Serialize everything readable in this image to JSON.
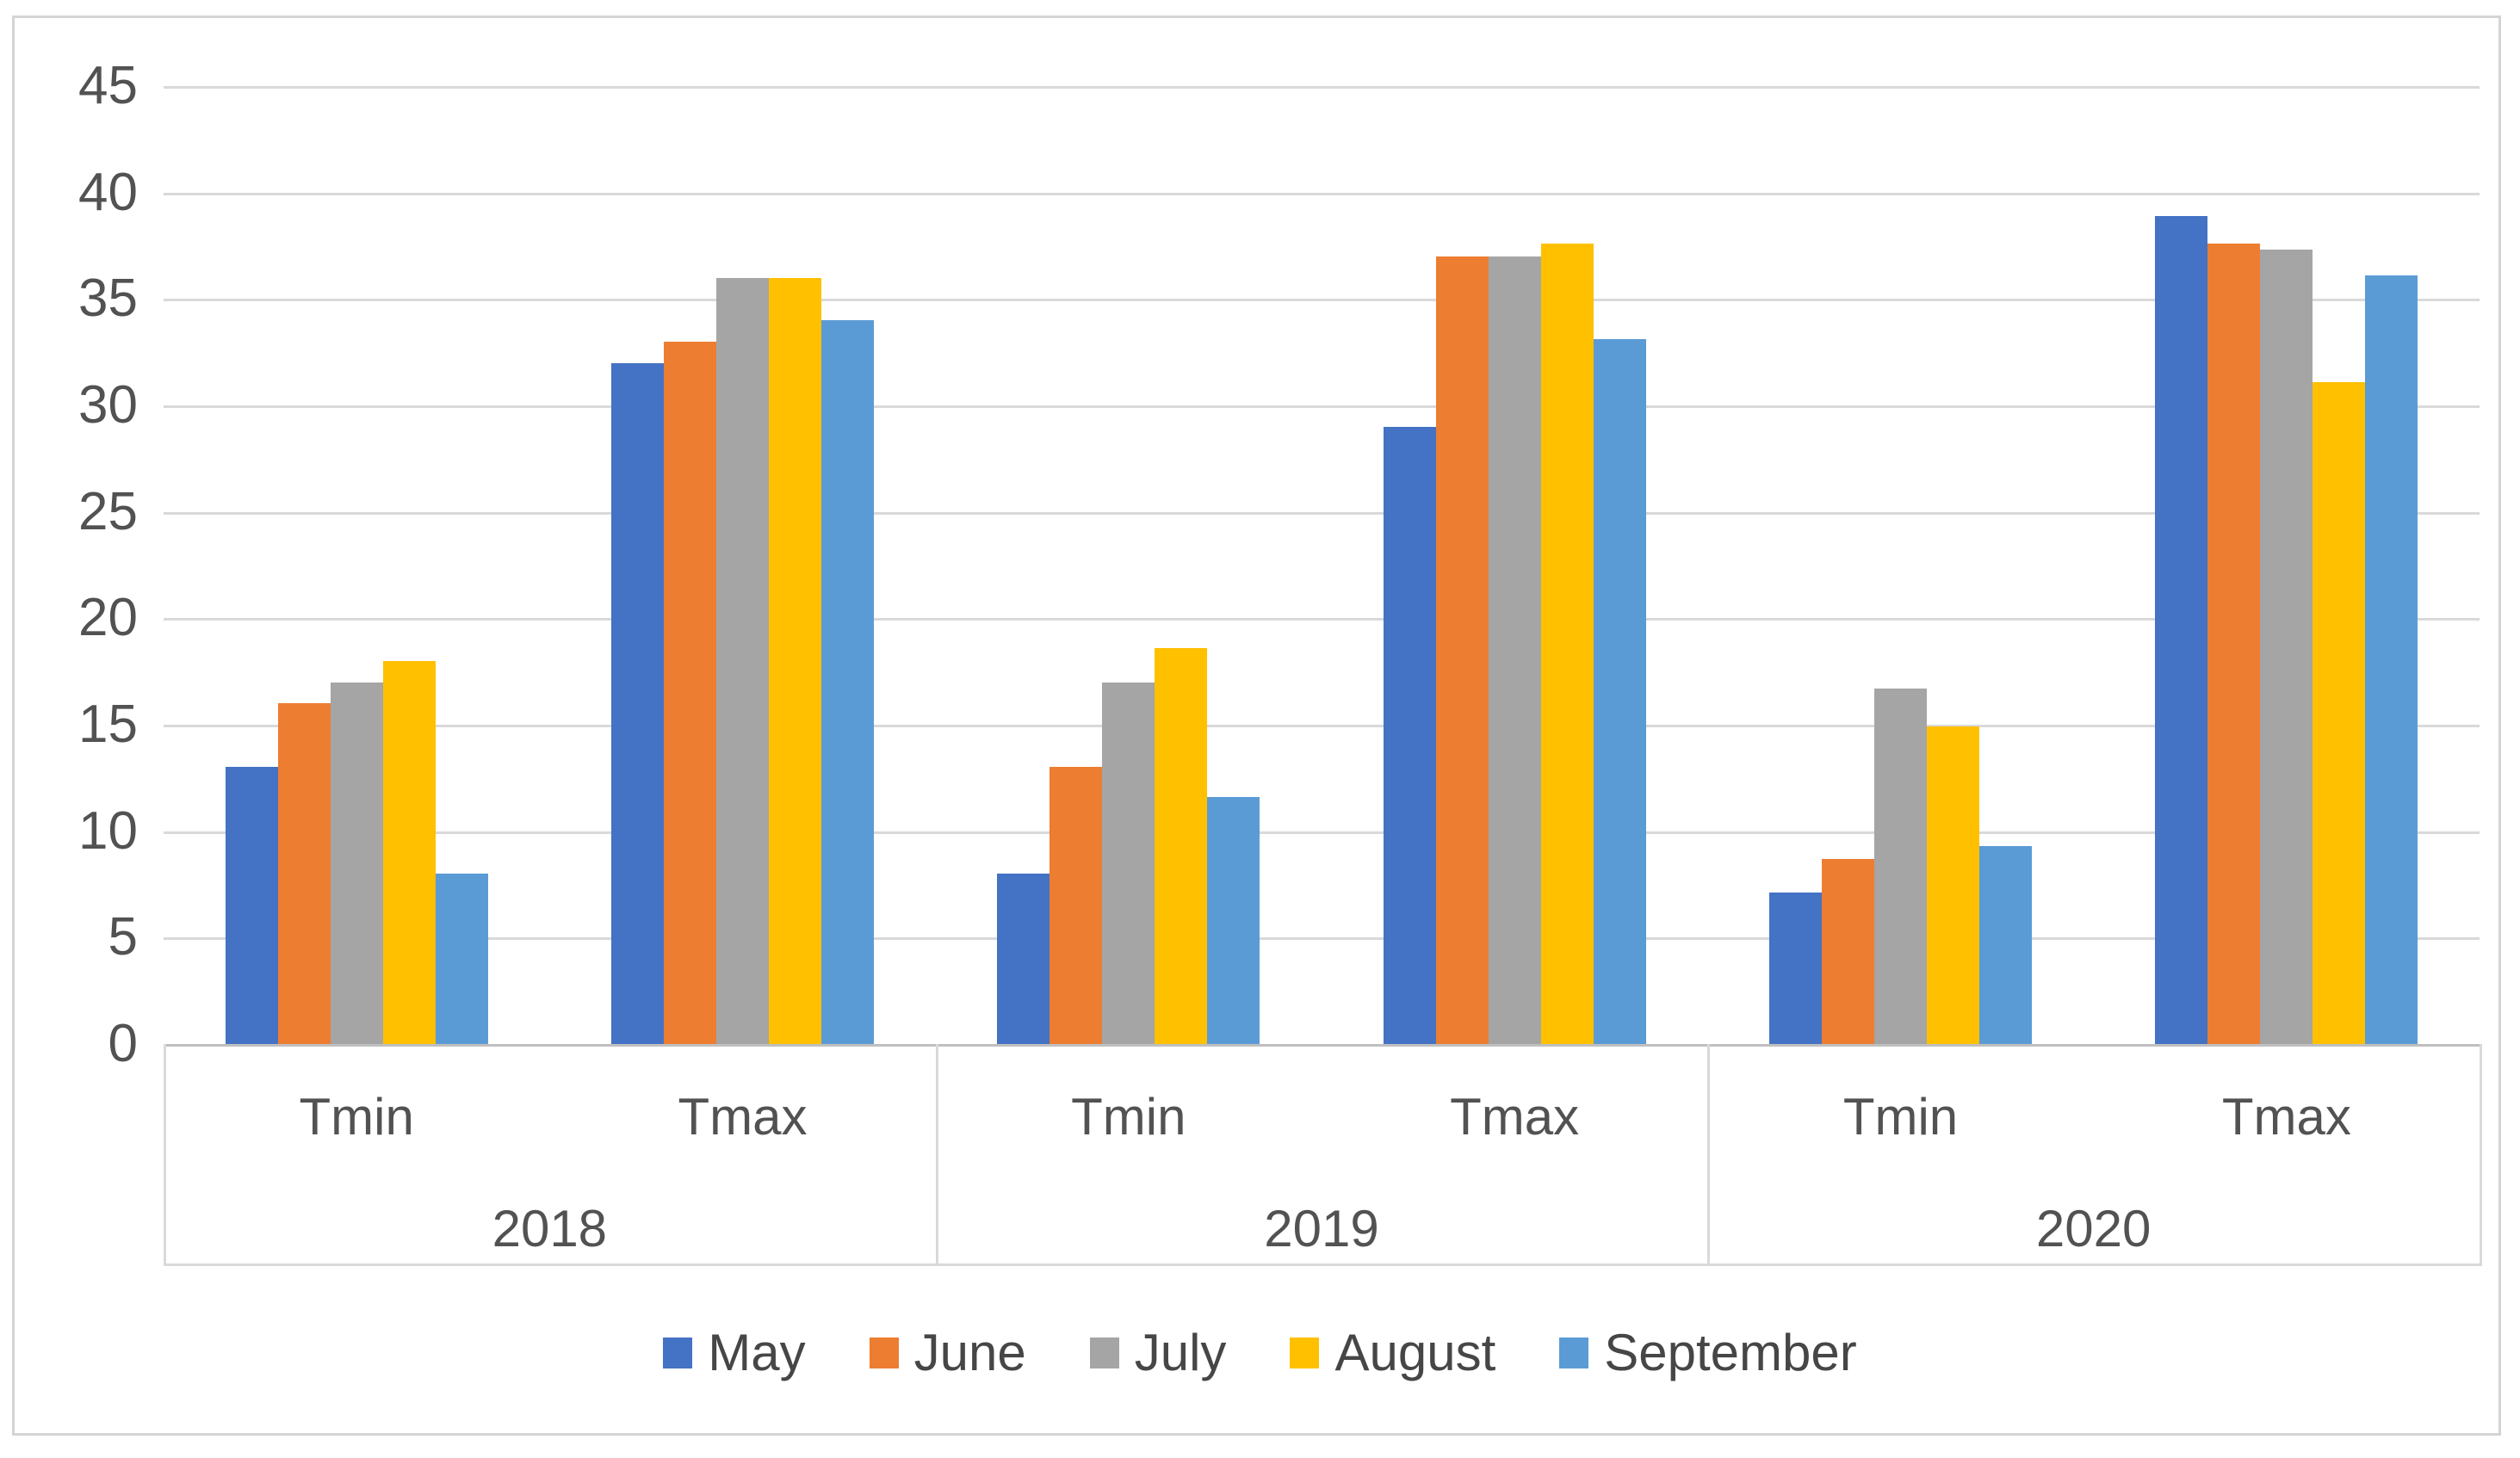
{
  "chart_data": {
    "type": "bar",
    "title": "",
    "grid": true,
    "legend_position": "bottom",
    "y_axis": {
      "min": 0,
      "max": 45,
      "step": 5,
      "tick_labels": [
        "0",
        "5",
        "10",
        "15",
        "20",
        "25",
        "30",
        "35",
        "40",
        "45"
      ]
    },
    "group_labels": [
      "2018",
      "2019",
      "2020"
    ],
    "categories": [
      "Tmin",
      "Tmax"
    ],
    "slot_order": [
      "2018 Tmin",
      "2018 Tmax",
      "2019 Tmin",
      "2019 Tmax",
      "2020 Tmin",
      "2020 Tmax"
    ],
    "series": [
      {
        "name": "May",
        "color": "#4472C4",
        "values": [
          13,
          32,
          8,
          29,
          7.1,
          38.9
        ]
      },
      {
        "name": "June",
        "color": "#ED7D31",
        "values": [
          16,
          33,
          13,
          37,
          8.7,
          37.6
        ]
      },
      {
        "name": "July",
        "color": "#A5A5A5",
        "values": [
          17,
          36,
          17,
          37,
          16.7,
          37.3
        ]
      },
      {
        "name": "August",
        "color": "#FFC000",
        "values": [
          18,
          36,
          18.6,
          37.6,
          14.9,
          31.1
        ]
      },
      {
        "name": "September",
        "color": "#5B9BD5",
        "values": [
          8,
          34,
          11.6,
          33.1,
          9.3,
          36.1
        ]
      }
    ]
  },
  "style": {
    "gridline_color": "#d9d9d9",
    "axis_line_color": "#bfbfbf",
    "frame_border_color": "#d4d4d4",
    "text_color": "#525252"
  }
}
